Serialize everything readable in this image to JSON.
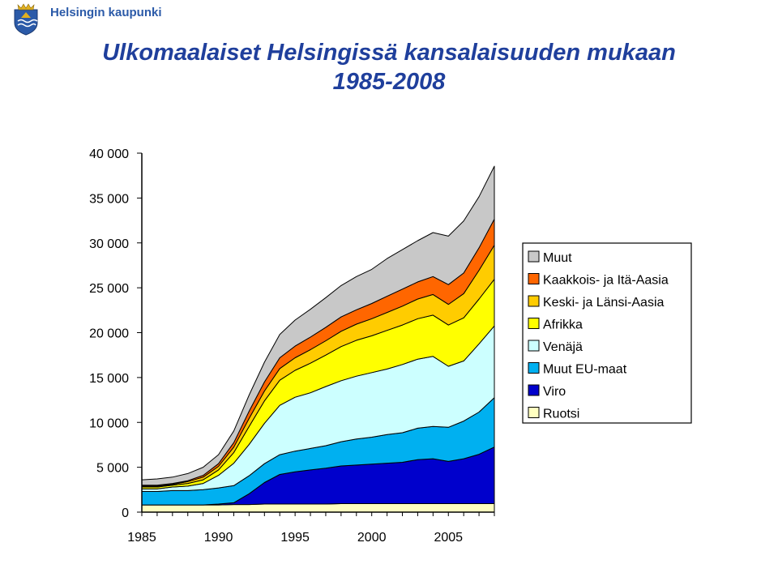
{
  "header": {
    "org_name": "Helsingin kaupunki",
    "logo": "helsinki-coat-of-arms-icon"
  },
  "title_line1": "Ulkomaalaiset Helsingissä kansalaisuuden mukaan",
  "title_line2": "1985-2008",
  "chart_data": {
    "type": "area",
    "stacked": true,
    "title": "Ulkomaalaiset Helsingissä kansalaisuuden mukaan 1985-2008",
    "xlabel": "",
    "ylabel": "",
    "x": [
      1985,
      1986,
      1987,
      1988,
      1989,
      1990,
      1991,
      1992,
      1993,
      1994,
      1995,
      1996,
      1997,
      1998,
      1999,
      2000,
      2001,
      2002,
      2003,
      2004,
      2005,
      2006,
      2007,
      2008
    ],
    "x_ticks": [
      "1985",
      "1990",
      "1995",
      "2000",
      "2005"
    ],
    "y_ticks": [
      "0",
      "5 000",
      "10 000",
      "15 000",
      "20 000",
      "25 000",
      "30 000",
      "35 000",
      "40 000"
    ],
    "ylim": [
      0,
      40000
    ],
    "grid": false,
    "legend_position": "right",
    "series": [
      {
        "name": "Ruotsi",
        "color": "#ffffc0",
        "values": [
          800,
          800,
          800,
          800,
          800,
          800,
          850,
          850,
          900,
          900,
          900,
          900,
          900,
          950,
          950,
          950,
          950,
          950,
          950,
          950,
          950,
          950,
          950,
          950
        ]
      },
      {
        "name": "Viro",
        "color": "#0000cc",
        "values": [
          0,
          0,
          0,
          0,
          0,
          100,
          200,
          1200,
          2400,
          3300,
          3600,
          3800,
          4000,
          4200,
          4300,
          4400,
          4500,
          4600,
          4900,
          5000,
          4700,
          5000,
          5500,
          6300
        ]
      },
      {
        "name": "Muut EU-maat",
        "color": "#00b0f0",
        "values": [
          1500,
          1500,
          1600,
          1600,
          1700,
          1800,
          1900,
          2000,
          2100,
          2200,
          2300,
          2400,
          2500,
          2700,
          2900,
          3000,
          3200,
          3300,
          3500,
          3600,
          3800,
          4200,
          4700,
          5500
        ]
      },
      {
        "name": "Venäjä",
        "color": "#ccffff",
        "values": [
          300,
          300,
          400,
          500,
          700,
          1400,
          2500,
          3500,
          4500,
          5500,
          6000,
          6200,
          6600,
          6800,
          7000,
          7200,
          7300,
          7600,
          7700,
          7800,
          6800,
          6700,
          7600,
          8000
        ]
      },
      {
        "name": "Afrikka",
        "color": "#ffff00",
        "values": [
          200,
          200,
          200,
          300,
          400,
          600,
          1200,
          2000,
          2500,
          2800,
          3000,
          3300,
          3500,
          3800,
          4000,
          4100,
          4300,
          4400,
          4500,
          4600,
          4600,
          4800,
          5000,
          5200
        ]
      },
      {
        "name": "Keski- ja Länsi-Aasia",
        "color": "#ffcc00",
        "values": [
          100,
          100,
          100,
          200,
          300,
          400,
          600,
          900,
          1100,
          1300,
          1400,
          1500,
          1600,
          1700,
          1800,
          1900,
          2000,
          2100,
          2200,
          2300,
          2300,
          2700,
          3200,
          3800
        ]
      },
      {
        "name": "Kaakkois- ja Itä-Aasia",
        "color": "#ff6600",
        "values": [
          100,
          100,
          100,
          100,
          200,
          300,
          500,
          800,
          1000,
          1200,
          1300,
          1400,
          1500,
          1600,
          1600,
          1700,
          1800,
          1900,
          1900,
          2000,
          2200,
          2300,
          2500,
          2900
        ]
      },
      {
        "name": "Muut",
        "color": "#c8c8c8",
        "values": [
          600,
          700,
          700,
          800,
          900,
          1000,
          1300,
          1800,
          2200,
          2600,
          2900,
          3100,
          3300,
          3500,
          3700,
          3800,
          4200,
          4400,
          4600,
          4900,
          5400,
          5800,
          5700,
          5900
        ]
      }
    ]
  }
}
